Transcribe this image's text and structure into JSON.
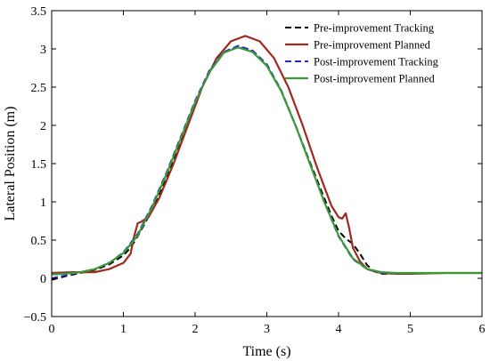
{
  "chart_data": {
    "type": "line",
    "title": "",
    "xlabel": "Time (s)",
    "ylabel": "Lateral Position (m)",
    "xlim": [
      0,
      6
    ],
    "ylim": [
      -0.5,
      3.5
    ],
    "xticks": [
      0,
      1,
      2,
      3,
      4,
      5,
      6
    ],
    "yticks": [
      -0.5,
      0,
      0.5,
      1,
      1.5,
      2,
      2.5,
      3,
      3.5
    ],
    "ytick_labels": [
      "−0.5",
      "0",
      "0.5",
      "1",
      "1.5",
      "2",
      "2.5",
      "3",
      "3.5"
    ],
    "grid": false,
    "legend_position": "top-right",
    "series": [
      {
        "name": "Pre-improvement Tracking",
        "color": "#000000",
        "dash": true,
        "x": [
          0,
          0.2,
          0.4,
          0.6,
          0.8,
          1.0,
          1.1,
          1.2,
          1.3,
          1.4,
          1.6,
          1.8,
          2.0,
          2.2,
          2.4,
          2.6,
          2.8,
          3.0,
          3.2,
          3.4,
          3.6,
          3.8,
          3.9,
          4.0,
          4.1,
          4.2,
          4.3,
          4.4,
          4.5,
          4.6,
          4.7,
          4.8,
          5.0,
          5.5,
          6.0
        ],
        "y": [
          -0.02,
          0.03,
          0.07,
          0.11,
          0.18,
          0.3,
          0.4,
          0.55,
          0.72,
          0.9,
          1.3,
          1.8,
          2.3,
          2.7,
          2.95,
          3.03,
          2.97,
          2.78,
          2.45,
          2.0,
          1.52,
          1.05,
          0.82,
          0.62,
          0.52,
          0.45,
          0.32,
          0.17,
          0.09,
          0.06,
          0.06,
          0.07,
          0.07,
          0.07,
          0.07
        ]
      },
      {
        "name": "Pre-improvement Planned",
        "color": "#a0281e",
        "dash": false,
        "x": [
          0,
          0.3,
          0.6,
          0.8,
          1.0,
          1.1,
          1.15,
          1.2,
          1.25,
          1.35,
          1.5,
          1.7,
          1.9,
          2.1,
          2.3,
          2.5,
          2.7,
          2.9,
          3.1,
          3.3,
          3.5,
          3.7,
          3.9,
          4.0,
          4.05,
          4.1,
          4.15,
          4.2,
          4.3,
          4.4,
          4.5,
          4.6,
          4.8,
          5.0,
          5.5,
          6.0
        ],
        "y": [
          0.07,
          0.08,
          0.08,
          0.12,
          0.2,
          0.32,
          0.55,
          0.72,
          0.74,
          0.8,
          1.05,
          1.5,
          2.0,
          2.5,
          2.88,
          3.1,
          3.17,
          3.1,
          2.88,
          2.5,
          2.0,
          1.45,
          0.95,
          0.8,
          0.78,
          0.85,
          0.65,
          0.4,
          0.22,
          0.12,
          0.09,
          0.07,
          0.06,
          0.06,
          0.07,
          0.07
        ]
      },
      {
        "name": "Post-improvement Tracking",
        "color": "#1f2bc8",
        "dash": true,
        "x": [
          0,
          0.2,
          0.4,
          0.6,
          0.8,
          1.0,
          1.2,
          1.4,
          1.6,
          1.8,
          2.0,
          2.2,
          2.4,
          2.6,
          2.8,
          3.0,
          3.2,
          3.4,
          3.6,
          3.8,
          4.0,
          4.2,
          4.4,
          4.6,
          4.8,
          5.0,
          5.5,
          6.0
        ],
        "y": [
          0.0,
          0.04,
          0.08,
          0.12,
          0.2,
          0.34,
          0.58,
          0.95,
          1.38,
          1.85,
          2.32,
          2.72,
          2.96,
          3.04,
          2.98,
          2.8,
          2.46,
          2.0,
          1.5,
          1.0,
          0.55,
          0.25,
          0.12,
          0.07,
          0.07,
          0.07,
          0.07,
          0.07
        ]
      },
      {
        "name": "Post-improvement Planned",
        "color": "#3a9a3a",
        "dash": false,
        "x": [
          0,
          0.2,
          0.4,
          0.6,
          0.8,
          1.0,
          1.2,
          1.4,
          1.6,
          1.8,
          2.0,
          2.2,
          2.4,
          2.6,
          2.8,
          3.0,
          3.2,
          3.4,
          3.6,
          3.8,
          4.0,
          4.2,
          4.4,
          4.6,
          4.8,
          5.0,
          5.5,
          6.0
        ],
        "y": [
          0.05,
          0.06,
          0.08,
          0.12,
          0.2,
          0.33,
          0.56,
          0.93,
          1.36,
          1.83,
          2.3,
          2.7,
          2.95,
          3.02,
          2.96,
          2.78,
          2.45,
          2.0,
          1.5,
          1.0,
          0.56,
          0.26,
          0.12,
          0.08,
          0.07,
          0.07,
          0.07,
          0.07
        ]
      }
    ]
  }
}
